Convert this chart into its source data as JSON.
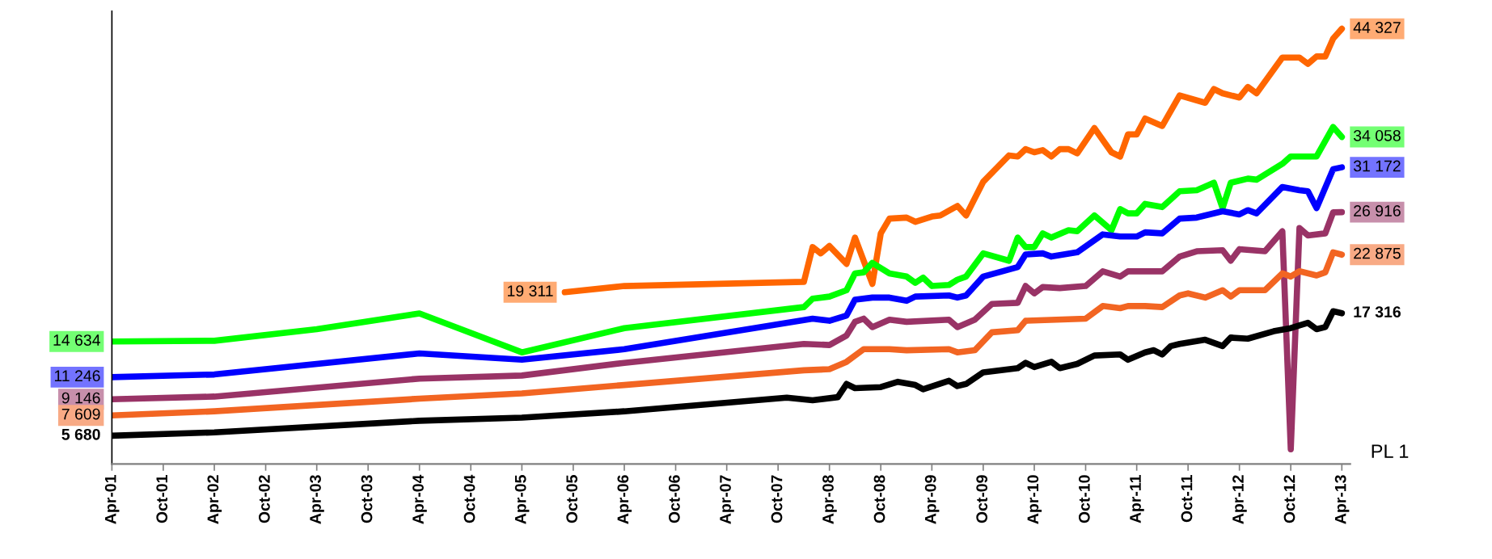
{
  "chart_data": {
    "type": "line",
    "xlim": [
      "2001-04",
      "2013-05"
    ],
    "ylim": [
      3000,
      46000
    ],
    "tick_labels": "x",
    "marker": "none",
    "line_style": "solid",
    "xticks": [
      {
        "value": "2001-04",
        "label": "Apr-01"
      },
      {
        "value": "2001-10",
        "label": "Oct-01"
      },
      {
        "value": "2002-04",
        "label": "Apr-02"
      },
      {
        "value": "2002-10",
        "label": "Oct-02"
      },
      {
        "value": "2003-04",
        "label": "Apr-03"
      },
      {
        "value": "2003-10",
        "label": "Oct-03"
      },
      {
        "value": "2004-04",
        "label": "Apr-04"
      },
      {
        "value": "2004-10",
        "label": "Oct-04"
      },
      {
        "value": "2005-04",
        "label": "Apr-05"
      },
      {
        "value": "2005-10",
        "label": "Oct-05"
      },
      {
        "value": "2006-04",
        "label": "Apr-06"
      },
      {
        "value": "2006-10",
        "label": "Oct-06"
      },
      {
        "value": "2007-04",
        "label": "Apr-07"
      },
      {
        "value": "2007-10",
        "label": "Oct-07"
      },
      {
        "value": "2008-04",
        "label": "Apr-08"
      },
      {
        "value": "2008-10",
        "label": "Oct-08"
      },
      {
        "value": "2009-04",
        "label": "Apr-09"
      },
      {
        "value": "2009-10",
        "label": "Oct-09"
      },
      {
        "value": "2010-04",
        "label": "Apr-10"
      },
      {
        "value": "2010-10",
        "label": "Oct-10"
      },
      {
        "value": "2011-04",
        "label": "Apr-11"
      },
      {
        "value": "2011-10",
        "label": "Oct-11"
      },
      {
        "value": "2012-04",
        "label": "Apr-12"
      },
      {
        "value": "2012-10",
        "label": "Oct-12"
      },
      {
        "value": "2013-04",
        "label": "Apr-13"
      }
    ],
    "annotations": [
      "PL 1"
    ],
    "series": [
      {
        "color": "#ff6600",
        "x": [
          "2005-09",
          "2006-04",
          "2008-01",
          "2008-02",
          "2008-03",
          "2008-04",
          "2008-06",
          "2008-07",
          "2008-09",
          "2008-10",
          "2008-11",
          "2009-01",
          "2009-02",
          "2009-04",
          "2009-05",
          "2009-07",
          "2009-08",
          "2009-10",
          "2010-01",
          "2010-02",
          "2010-03",
          "2010-04",
          "2010-05",
          "2010-06",
          "2010-07",
          "2010-08",
          "2010-09",
          "2010-11",
          "2011-01",
          "2011-02",
          "2011-03",
          "2011-04",
          "2011-05",
          "2011-07",
          "2011-09",
          "2011-12",
          "2012-01",
          "2012-02",
          "2012-04",
          "2012-05",
          "2012-06",
          "2012-09",
          "2012-11",
          "2012-12",
          "2013-01",
          "2013-02",
          "2013-03",
          "2013-04"
        ],
        "values": [
          19311,
          19900,
          20300,
          23600,
          23000,
          23700,
          22000,
          24500,
          20100,
          24900,
          26300,
          26400,
          26000,
          26500,
          26600,
          27500,
          26600,
          29800,
          32300,
          32200,
          32900,
          32600,
          32800,
          32200,
          32900,
          32900,
          32500,
          34900,
          32600,
          32200,
          34300,
          34300,
          35800,
          35100,
          38000,
          37300,
          38600,
          38200,
          37800,
          38800,
          38200,
          41600,
          41600,
          41000,
          41700,
          41700,
          43400,
          44327
        ],
        "value_labels": [
          "19 311",
          null,
          null,
          null,
          null,
          null,
          null,
          null,
          null,
          null,
          null,
          null,
          null,
          null,
          null,
          null,
          null,
          null,
          null,
          null,
          null,
          null,
          null,
          null,
          null,
          null,
          null,
          null,
          null,
          null,
          null,
          null,
          null,
          null,
          null,
          null,
          null,
          null,
          null,
          null,
          null,
          null,
          null,
          null,
          null,
          null,
          null,
          "44 327"
        ]
      },
      {
        "color": "#00ff00",
        "x": [
          "2001-04",
          "2002-04",
          "2003-04",
          "2004-04",
          "2005-04",
          "2006-04",
          "2008-01",
          "2008-02",
          "2008-04",
          "2008-06",
          "2008-07",
          "2008-08",
          "2008-09",
          "2008-11",
          "2009-01",
          "2009-02",
          "2009-03",
          "2009-04",
          "2009-06",
          "2009-07",
          "2009-08",
          "2009-10",
          "2010-01",
          "2010-02",
          "2010-03",
          "2010-04",
          "2010-05",
          "2010-06",
          "2010-08",
          "2010-09",
          "2010-11",
          "2011-01",
          "2011-02",
          "2011-03",
          "2011-04",
          "2011-05",
          "2011-07",
          "2011-09",
          "2011-11",
          "2012-01",
          "2012-02",
          "2012-03",
          "2012-05",
          "2012-06",
          "2012-09",
          "2012-10",
          "2013-01",
          "2013-03",
          "2013-04"
        ],
        "values": [
          14634,
          14700,
          15800,
          17300,
          13600,
          15900,
          17900,
          18700,
          18900,
          19500,
          21100,
          21200,
          22100,
          21100,
          20800,
          20200,
          20700,
          19900,
          20000,
          20500,
          20800,
          23000,
          22300,
          24500,
          23600,
          23600,
          24900,
          24500,
          25200,
          25100,
          26600,
          25200,
          27200,
          26800,
          26800,
          27700,
          27400,
          28900,
          29000,
          29700,
          27300,
          29700,
          30100,
          30000,
          31500,
          32200,
          32200,
          35000,
          34058
        ],
        "value_labels": [
          "14 634",
          null,
          null,
          null,
          null,
          null,
          null,
          null,
          null,
          null,
          null,
          null,
          null,
          null,
          null,
          null,
          null,
          null,
          null,
          null,
          null,
          null,
          null,
          null,
          null,
          null,
          null,
          null,
          null,
          null,
          null,
          null,
          null,
          null,
          null,
          null,
          null,
          null,
          null,
          null,
          null,
          null,
          null,
          null,
          null,
          null,
          null,
          null,
          "34 058"
        ]
      },
      {
        "color": "#0000ff",
        "x": [
          "2001-04",
          "2002-04",
          "2004-04",
          "2005-04",
          "2006-04",
          "2008-02",
          "2008-04",
          "2008-06",
          "2008-07",
          "2008-09",
          "2008-11",
          "2009-01",
          "2009-02",
          "2009-06",
          "2009-07",
          "2009-08",
          "2009-10",
          "2010-02",
          "2010-03",
          "2010-05",
          "2010-06",
          "2010-09",
          "2010-12",
          "2011-02",
          "2011-04",
          "2011-05",
          "2011-07",
          "2011-09",
          "2011-11",
          "2012-02",
          "2012-04",
          "2012-05",
          "2012-06",
          "2012-09",
          "2012-11",
          "2012-12",
          "2013-01",
          "2013-03",
          "2013-04"
        ],
        "values": [
          11246,
          11500,
          13500,
          12900,
          13900,
          16800,
          16600,
          17100,
          18600,
          18800,
          18800,
          18500,
          18900,
          19000,
          18800,
          19000,
          20800,
          21700,
          22900,
          23000,
          22700,
          23100,
          24800,
          24600,
          24600,
          25000,
          24900,
          26300,
          26400,
          27000,
          26700,
          27100,
          26800,
          29300,
          29000,
          28900,
          27300,
          31000,
          31172
        ],
        "value_labels": [
          "11 246",
          null,
          null,
          null,
          null,
          null,
          null,
          null,
          null,
          null,
          null,
          null,
          null,
          null,
          null,
          null,
          null,
          null,
          null,
          null,
          null,
          null,
          null,
          null,
          null,
          null,
          null,
          null,
          null,
          null,
          null,
          null,
          null,
          null,
          null,
          null,
          null,
          null,
          "31 172"
        ]
      },
      {
        "color": "#993366",
        "x": [
          "2001-04",
          "2002-04",
          "2004-04",
          "2005-04",
          "2006-04",
          "2008-01",
          "2008-04",
          "2008-06",
          "2008-07",
          "2008-08",
          "2008-09",
          "2008-11",
          "2009-01",
          "2009-06",
          "2009-07",
          "2009-09",
          "2009-11",
          "2010-02",
          "2010-03",
          "2010-04",
          "2010-05",
          "2010-07",
          "2010-10",
          "2010-12",
          "2011-02",
          "2011-03",
          "2011-05",
          "2011-07",
          "2011-09",
          "2011-11",
          "2012-02",
          "2012-03",
          "2012-04",
          "2012-07",
          "2012-09",
          "2012-10",
          "2012-11",
          "2012-12",
          "2013-02",
          "2013-03",
          "2013-04"
        ],
        "values": [
          9146,
          9400,
          11100,
          11400,
          12600,
          14400,
          14300,
          15200,
          16500,
          16800,
          16000,
          16700,
          16500,
          16700,
          16000,
          16700,
          18200,
          18300,
          19900,
          19200,
          19800,
          19700,
          19900,
          21300,
          20800,
          21300,
          21300,
          21300,
          22700,
          23200,
          23300,
          22300,
          23400,
          23200,
          25100,
          4400,
          25400,
          24700,
          24900,
          26900,
          26916
        ],
        "value_labels": [
          "9 146",
          null,
          null,
          null,
          null,
          null,
          null,
          null,
          null,
          null,
          null,
          null,
          null,
          null,
          null,
          null,
          null,
          null,
          null,
          null,
          null,
          null,
          null,
          null,
          null,
          null,
          null,
          null,
          null,
          null,
          null,
          null,
          null,
          null,
          null,
          null,
          null,
          null,
          null,
          null,
          "26 916"
        ]
      },
      {
        "color": "#f26522",
        "x": [
          "2001-04",
          "2002-04",
          "2004-04",
          "2005-04",
          "2006-04",
          "2008-01",
          "2008-04",
          "2008-06",
          "2008-08",
          "2008-11",
          "2009-01",
          "2009-06",
          "2009-07",
          "2009-09",
          "2009-11",
          "2010-02",
          "2010-03",
          "2010-10",
          "2010-12",
          "2011-02",
          "2011-03",
          "2011-05",
          "2011-07",
          "2011-09",
          "2011-10",
          "2011-12",
          "2012-02",
          "2012-03",
          "2012-04",
          "2012-07",
          "2012-09",
          "2012-10",
          "2012-11",
          "2013-01",
          "2013-02",
          "2013-03",
          "2013-04"
        ],
        "values": [
          7609,
          8000,
          9200,
          9700,
          10500,
          11900,
          12000,
          12700,
          13900,
          13900,
          13800,
          13900,
          13600,
          13800,
          15500,
          15700,
          16600,
          16800,
          18000,
          17800,
          18000,
          18000,
          17900,
          19000,
          19200,
          18800,
          19500,
          18900,
          19500,
          19500,
          21100,
          20800,
          21300,
          20900,
          21200,
          23100,
          22875
        ],
        "value_labels": [
          "7 609",
          null,
          null,
          null,
          null,
          null,
          null,
          null,
          null,
          null,
          null,
          null,
          null,
          null,
          null,
          null,
          null,
          null,
          null,
          null,
          null,
          null,
          null,
          null,
          null,
          null,
          null,
          null,
          null,
          null,
          null,
          null,
          null,
          null,
          null,
          null,
          "22 875"
        ]
      },
      {
        "color": "#000000",
        "x": [
          "2001-04",
          "2002-04",
          "2004-04",
          "2005-04",
          "2006-04",
          "2007-11",
          "2008-02",
          "2008-05",
          "2008-06",
          "2008-07",
          "2008-10",
          "2008-12",
          "2009-02",
          "2009-03",
          "2009-06",
          "2009-07",
          "2009-08",
          "2009-10",
          "2010-02",
          "2010-03",
          "2010-04",
          "2010-06",
          "2010-07",
          "2010-09",
          "2010-11",
          "2011-02",
          "2011-03",
          "2011-05",
          "2011-06",
          "2011-07",
          "2011-08",
          "2011-09",
          "2011-12",
          "2012-02",
          "2012-03",
          "2012-05",
          "2012-08",
          "2012-10",
          "2012-12",
          "2013-01",
          "2013-02",
          "2013-03",
          "2013-04"
        ],
        "values": [
          5680,
          6000,
          7100,
          7400,
          8000,
          9300,
          9050,
          9350,
          10600,
          10200,
          10300,
          10800,
          10500,
          10100,
          10900,
          10400,
          10600,
          11700,
          12100,
          12600,
          12200,
          12700,
          12100,
          12500,
          13300,
          13400,
          12900,
          13600,
          13800,
          13400,
          14200,
          14400,
          14800,
          14200,
          15000,
          14900,
          15600,
          15900,
          16400,
          15800,
          16000,
          17500,
          17316
        ],
        "value_labels": [
          "5 680",
          null,
          null,
          null,
          null,
          null,
          null,
          null,
          null,
          null,
          null,
          null,
          null,
          null,
          null,
          null,
          null,
          null,
          null,
          null,
          null,
          null,
          null,
          null,
          null,
          null,
          null,
          null,
          null,
          null,
          null,
          null,
          null,
          null,
          null,
          null,
          null,
          null,
          null,
          null,
          null,
          null,
          "17 316"
        ]
      }
    ]
  }
}
